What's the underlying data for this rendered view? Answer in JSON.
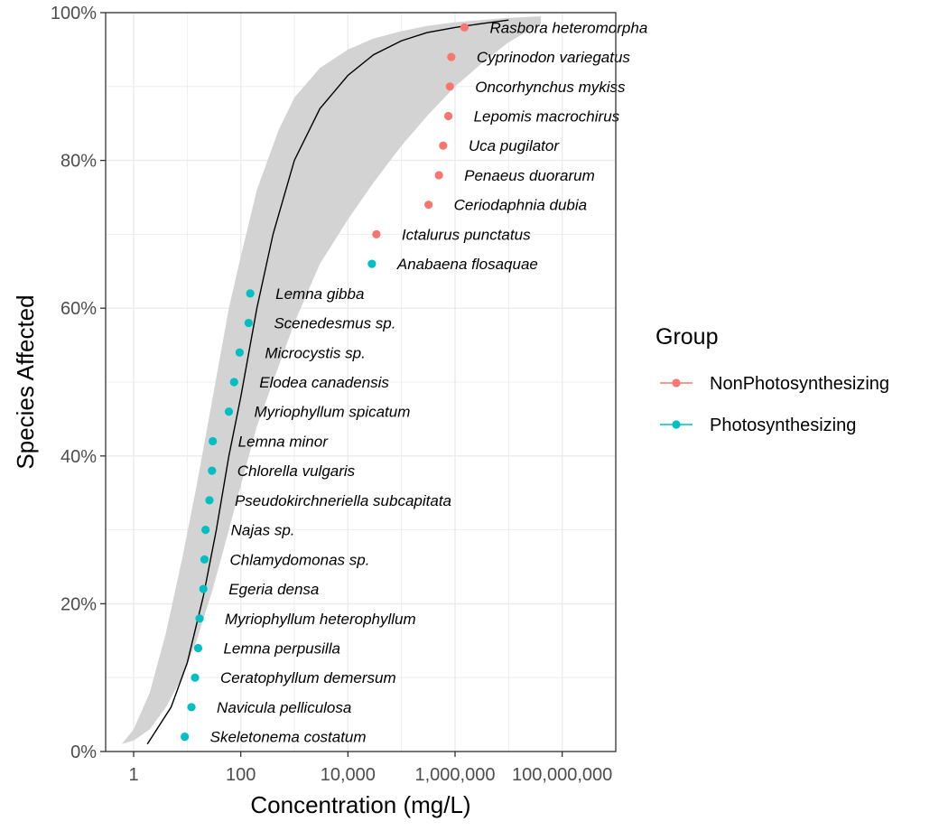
{
  "chart_data": {
    "type": "scatter",
    "xlabel": "Concentration (mg/L)",
    "ylabel": "Species Affected",
    "x_scale": "log10",
    "xlim": [
      0.3,
      1000000000
    ],
    "ylim": [
      0,
      100
    ],
    "x_ticks": [
      {
        "value": 1,
        "label": "1"
      },
      {
        "value": 100,
        "label": "100"
      },
      {
        "value": 10000,
        "label": "10,000"
      },
      {
        "value": 1000000,
        "label": "1,000,000"
      },
      {
        "value": 100000000,
        "label": "100,000,000"
      }
    ],
    "y_ticks": [
      {
        "value": 0,
        "label": "0%"
      },
      {
        "value": 20,
        "label": "20%"
      },
      {
        "value": 40,
        "label": "40%"
      },
      {
        "value": 60,
        "label": "60%"
      },
      {
        "value": 80,
        "label": "80%"
      },
      {
        "value": 100,
        "label": "100%"
      }
    ],
    "grid": true,
    "legend": {
      "title": "Group",
      "position": "right",
      "entries": [
        {
          "label": "NonPhotosynthesizing",
          "color": "#F8766D"
        },
        {
          "label": "Photosynthesizing",
          "color": "#00BFC4"
        }
      ]
    },
    "points": [
      {
        "species": "Skeletonema costatum",
        "x": 9,
        "y": 2,
        "group": "Photosynthesizing"
      },
      {
        "species": "Navicula pelliculosa",
        "x": 12,
        "y": 6,
        "group": "Photosynthesizing"
      },
      {
        "species": "Ceratophyllum demersum",
        "x": 14,
        "y": 10,
        "group": "Photosynthesizing"
      },
      {
        "species": "Lemna perpusilla",
        "x": 16,
        "y": 14,
        "group": "Photosynthesizing"
      },
      {
        "species": "Myriophyllum heterophyllum",
        "x": 17,
        "y": 18,
        "group": "Photosynthesizing"
      },
      {
        "species": "Egeria densa",
        "x": 20,
        "y": 22,
        "group": "Photosynthesizing"
      },
      {
        "species": "Chlamydomonas sp.",
        "x": 21,
        "y": 26,
        "group": "Photosynthesizing"
      },
      {
        "species": "Najas sp.",
        "x": 22,
        "y": 30,
        "group": "Photosynthesizing"
      },
      {
        "species": "Pseudokirchneriella subcapitata",
        "x": 26,
        "y": 34,
        "group": "Photosynthesizing"
      },
      {
        "species": "Chlorella vulgaris",
        "x": 29,
        "y": 38,
        "group": "Photosynthesizing"
      },
      {
        "species": "Lemna minor",
        "x": 30,
        "y": 42,
        "group": "Photosynthesizing"
      },
      {
        "species": "Myriophyllum spicatum",
        "x": 60,
        "y": 46,
        "group": "Photosynthesizing"
      },
      {
        "species": "Elodea canadensis",
        "x": 75,
        "y": 50,
        "group": "Photosynthesizing"
      },
      {
        "species": "Microcystis sp.",
        "x": 95,
        "y": 54,
        "group": "Photosynthesizing"
      },
      {
        "species": "Scenedesmus sp.",
        "x": 140,
        "y": 58,
        "group": "Photosynthesizing"
      },
      {
        "species": "Lemna gibba",
        "x": 150,
        "y": 62,
        "group": "Photosynthesizing"
      },
      {
        "species": "Anabaena flosaquae",
        "x": 28000,
        "y": 66,
        "group": "Photosynthesizing"
      },
      {
        "species": "Ictalurus punctatus",
        "x": 34000,
        "y": 70,
        "group": "NonPhotosynthesizing"
      },
      {
        "species": "Ceriodaphnia dubia",
        "x": 320000,
        "y": 74,
        "group": "NonPhotosynthesizing"
      },
      {
        "species": "Penaeus duorarum",
        "x": 500000,
        "y": 78,
        "group": "NonPhotosynthesizing"
      },
      {
        "species": "Uca pugilator",
        "x": 600000,
        "y": 82,
        "group": "NonPhotosynthesizing"
      },
      {
        "species": "Lepomis macrochirus",
        "x": 750000,
        "y": 86,
        "group": "NonPhotosynthesizing"
      },
      {
        "species": "Oncorhynchus mykiss",
        "x": 800000,
        "y": 90,
        "group": "NonPhotosynthesizing"
      },
      {
        "species": "Cyprinodon variegatus",
        "x": 850000,
        "y": 94,
        "group": "NonPhotosynthesizing"
      },
      {
        "species": "Rasbora heteromorpha",
        "x": 1500000,
        "y": 98,
        "group": "NonPhotosynthesizing"
      }
    ],
    "fitted_curve": {
      "x": [
        1.8,
        5,
        10,
        20,
        35,
        60,
        100,
        200,
        400,
        1000,
        3000,
        10000,
        30000,
        100000,
        300000,
        1000000,
        3000000,
        10000000
      ],
      "y": [
        1,
        6,
        12,
        21,
        30,
        40,
        48,
        60,
        70,
        80,
        87,
        91.5,
        94.3,
        96.2,
        97.3,
        98.0,
        98.5,
        99
      ]
    },
    "confidence_band": {
      "x": [
        0.6,
        1,
        2,
        4,
        8,
        15,
        30,
        60,
        100,
        200,
        500,
        1000,
        3000,
        10000,
        30000,
        100000,
        300000,
        1000000,
        3000000,
        10000000,
        40000000
      ],
      "lower": [
        1,
        1.5,
        3,
        6,
        10,
        15,
        22,
        30,
        36,
        44,
        52,
        58,
        66,
        72,
        77,
        82,
        86,
        90,
        93,
        96,
        98.5
      ],
      "upper": [
        1,
        3,
        8,
        16,
        26,
        36,
        48,
        60,
        67,
        76,
        84,
        88.5,
        92.5,
        95,
        96.5,
        97.5,
        98.2,
        98.7,
        99,
        99.3,
        99.5
      ]
    },
    "band_color": "#d3d3d3",
    "grid_color": "#ebebeb"
  }
}
